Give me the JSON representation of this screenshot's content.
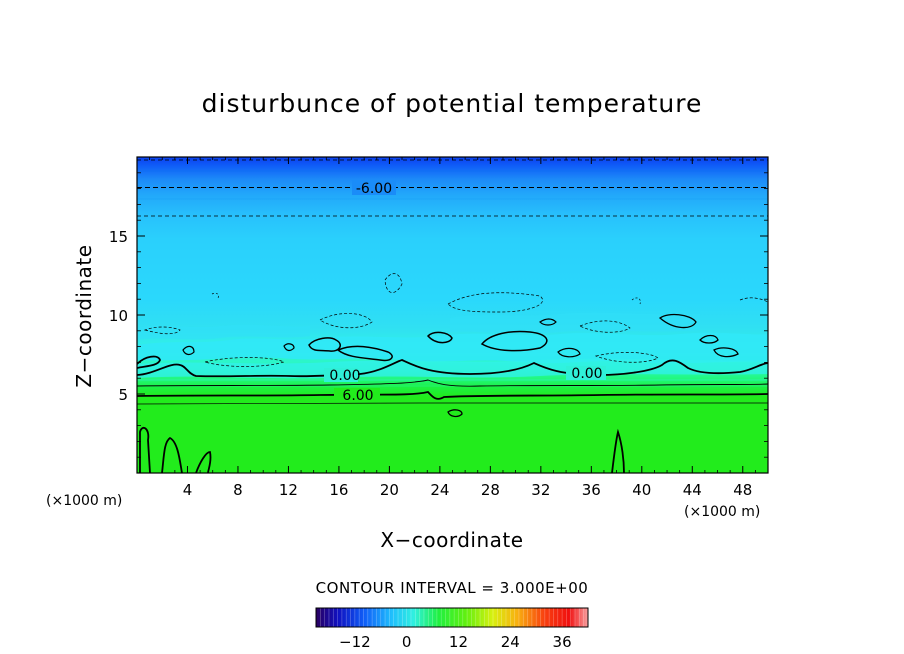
{
  "chart_data": {
    "type": "heatmap",
    "title": "disturbunce of potential temperature",
    "xlabel": "X−coordinate",
    "ylabel": "Z−coordinate",
    "x_unit": "(×1000 m)",
    "xlim": [
      0,
      50
    ],
    "ylim": [
      0,
      20
    ],
    "x_ticks": [
      4,
      8,
      12,
      16,
      20,
      24,
      28,
      32,
      36,
      40,
      44,
      48
    ],
    "x_tick_labels": [
      "4",
      "8",
      "12",
      "16",
      "20",
      "24",
      "28",
      "32",
      "36",
      "40",
      "44",
      "48"
    ],
    "y_ticks": [
      5,
      10,
      15
    ],
    "y_tick_labels": [
      "5",
      "10",
      "15"
    ],
    "contour_interval_text": "CONTOUR INTERVAL = 3.000E+00",
    "contour_interval": 3.0,
    "contour_labels": [
      {
        "text": "-6.00",
        "x": 20,
        "z": 18
      },
      {
        "text": "0.00",
        "x": 12.6,
        "z": 6.2
      },
      {
        "text": "0.00",
        "x": 34.8,
        "z": 6.3
      },
      {
        "text": "6.00",
        "x": 13.5,
        "z": 4.9
      }
    ],
    "colorbar": {
      "min": -21,
      "max": 42,
      "tick_values": [
        -12,
        0,
        12,
        24,
        36
      ],
      "tick_labels": [
        "−12",
        "0",
        "12",
        "24",
        "36"
      ]
    },
    "field_profile": [
      {
        "z": 0,
        "value": 7.5
      },
      {
        "z": 4.3,
        "value": 7.0
      },
      {
        "z": 4.8,
        "value": 5.0
      },
      {
        "z": 5.4,
        "value": 3.0
      },
      {
        "z": 6.2,
        "value": 0.5
      },
      {
        "z": 7.5,
        "value": -1.0
      },
      {
        "z": 9.0,
        "value": -2.0
      },
      {
        "z": 14.5,
        "value": -3.0
      },
      {
        "z": 16.0,
        "value": -3.5
      },
      {
        "z": 18.0,
        "value": -6.0
      },
      {
        "z": 20.0,
        "value": -9.0
      }
    ]
  }
}
